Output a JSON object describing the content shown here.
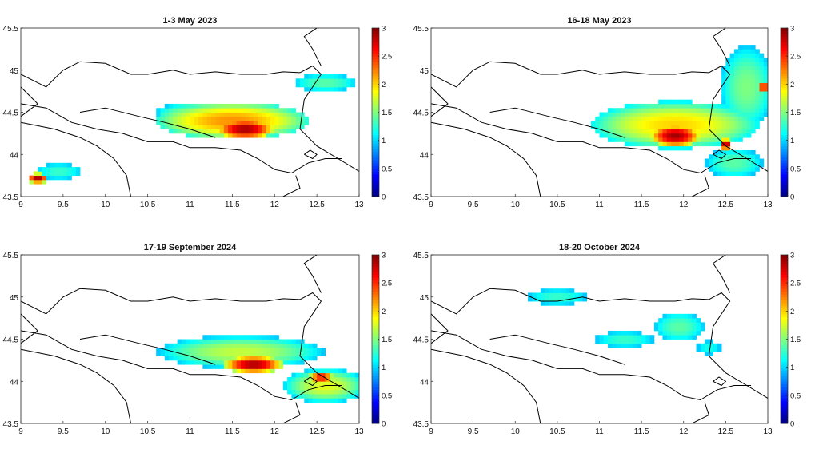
{
  "colormap": "jet",
  "colorbar": {
    "ticks": [
      "0",
      "0.5",
      "1",
      "1.5",
      "2",
      "2.5",
      "3"
    ],
    "range": [
      0,
      3
    ]
  },
  "axes": {
    "x_ticks": [
      "9",
      "9.5",
      "10",
      "10.5",
      "11",
      "11.5",
      "12",
      "12.5",
      "13"
    ],
    "y_ticks": [
      "43.5",
      "44",
      "44.5",
      "45",
      "45.5"
    ],
    "x_range": [
      9,
      13
    ],
    "y_range": [
      43.5,
      45.5
    ]
  },
  "panels": [
    {
      "title": "1-3 May 2023",
      "blobs": [
        {
          "lon": 11.5,
          "lat": 44.4,
          "rx": 0.9,
          "ry": 0.22,
          "value": 2.2
        },
        {
          "lon": 11.65,
          "lat": 44.3,
          "rx": 0.35,
          "ry": 0.12,
          "value": 2.9
        },
        {
          "lon": 11.1,
          "lat": 44.5,
          "rx": 0.55,
          "ry": 0.12,
          "value": 1.6
        },
        {
          "lon": 12.6,
          "lat": 44.85,
          "rx": 0.45,
          "ry": 0.12,
          "value": 1.4
        },
        {
          "lon": 9.45,
          "lat": 43.8,
          "rx": 0.35,
          "ry": 0.12,
          "value": 1.3
        },
        {
          "lon": 9.2,
          "lat": 43.72,
          "rx": 0.12,
          "ry": 0.06,
          "value": 2.9
        }
      ]
    },
    {
      "title": "16-18 May 2023",
      "blobs": [
        {
          "lon": 11.9,
          "lat": 44.35,
          "rx": 1.0,
          "ry": 0.28,
          "value": 2.0
        },
        {
          "lon": 11.9,
          "lat": 44.22,
          "rx": 0.3,
          "ry": 0.13,
          "value": 2.9
        },
        {
          "lon": 12.5,
          "lat": 44.12,
          "rx": 0.07,
          "ry": 0.07,
          "value": 2.9
        },
        {
          "lon": 12.75,
          "lat": 44.8,
          "rx": 0.35,
          "ry": 0.55,
          "value": 1.5
        },
        {
          "lon": 12.95,
          "lat": 44.8,
          "rx": 0.07,
          "ry": 0.07,
          "value": 2.7
        },
        {
          "lon": 12.6,
          "lat": 43.9,
          "rx": 0.4,
          "ry": 0.2,
          "value": 1.4
        }
      ]
    },
    {
      "title": "17-19 September 2024",
      "blobs": [
        {
          "lon": 11.6,
          "lat": 44.35,
          "rx": 1.0,
          "ry": 0.2,
          "value": 1.7
        },
        {
          "lon": 11.75,
          "lat": 44.2,
          "rx": 0.35,
          "ry": 0.1,
          "value": 2.9
        },
        {
          "lon": 12.6,
          "lat": 43.95,
          "rx": 0.5,
          "ry": 0.2,
          "value": 1.8
        },
        {
          "lon": 12.55,
          "lat": 44.05,
          "rx": 0.15,
          "ry": 0.06,
          "value": 2.7
        }
      ]
    },
    {
      "title": "18-20 October 2024",
      "blobs": [
        {
          "lon": 10.5,
          "lat": 45.0,
          "rx": 0.45,
          "ry": 0.12,
          "value": 1.3
        },
        {
          "lon": 11.3,
          "lat": 44.5,
          "rx": 0.45,
          "ry": 0.12,
          "value": 1.3
        },
        {
          "lon": 11.95,
          "lat": 44.65,
          "rx": 0.35,
          "ry": 0.2,
          "value": 1.4
        },
        {
          "lon": 12.3,
          "lat": 44.4,
          "rx": 0.2,
          "ry": 0.12,
          "value": 1.2
        }
      ]
    }
  ]
}
